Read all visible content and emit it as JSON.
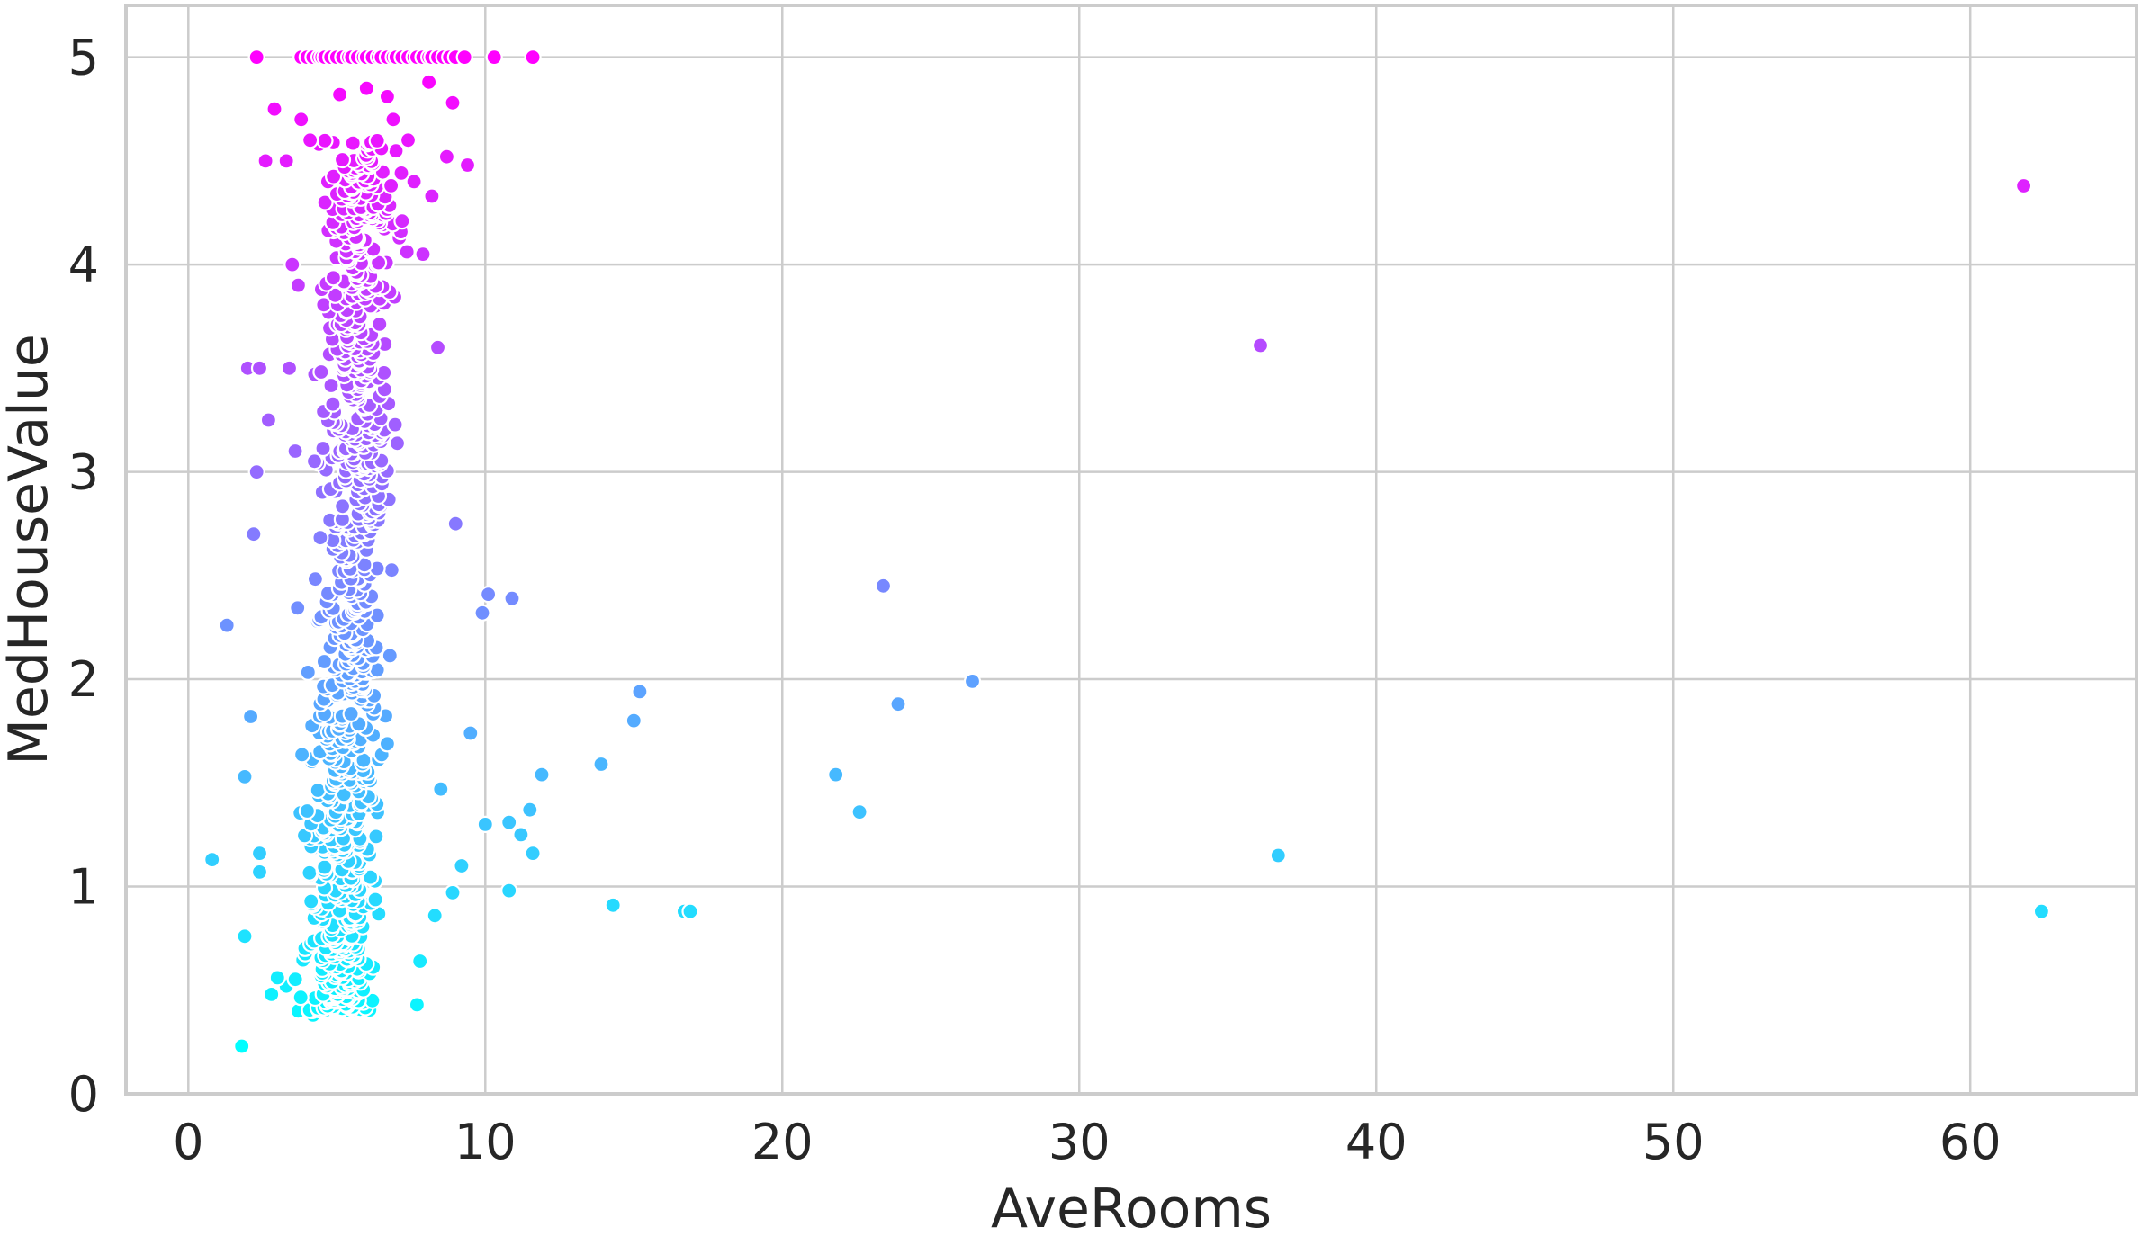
{
  "chart_data": {
    "type": "scatter",
    "xlabel": "AveRooms",
    "ylabel": "MedHouseValue",
    "xlim": [
      -2.1,
      65.6
    ],
    "ylim": [
      0,
      5.25
    ],
    "xticks": [
      0,
      10,
      20,
      30,
      40,
      50,
      60
    ],
    "yticks": [
      0,
      1,
      2,
      3,
      4,
      5
    ],
    "grid": true,
    "legend": "none",
    "colormap": {
      "name": "cool",
      "low": "#00ffff",
      "high": "#ff00ff",
      "vmin": 0.22,
      "vmax": 5.0
    },
    "points": [
      [
        0.8,
        1.13
      ],
      [
        1.3,
        2.26
      ],
      [
        1.8,
        0.23
      ],
      [
        1.9,
        0.76
      ],
      [
        1.9,
        1.53
      ],
      [
        2.0,
        3.5
      ],
      [
        2.1,
        1.82
      ],
      [
        2.2,
        2.7
      ],
      [
        2.3,
        3.0
      ],
      [
        2.3,
        5.0
      ],
      [
        2.4,
        1.07
      ],
      [
        2.4,
        1.16
      ],
      [
        2.4,
        3.5
      ],
      [
        2.6,
        4.5
      ],
      [
        2.7,
        3.25
      ],
      [
        2.8,
        0.48
      ],
      [
        2.9,
        4.75
      ],
      [
        3.0,
        0.56
      ],
      [
        3.3,
        4.5
      ],
      [
        3.3,
        0.52
      ],
      [
        3.4,
        3.5
      ],
      [
        3.5,
        4.0
      ],
      [
        3.6,
        3.1
      ],
      [
        3.7,
        0.4
      ],
      [
        3.7,
        3.9
      ],
      [
        3.8,
        4.7
      ],
      [
        4.1,
        4.6
      ],
      [
        4.2,
        0.38
      ],
      [
        4.4,
        4.58
      ],
      [
        4.6,
        4.3
      ],
      [
        4.7,
        4.4
      ],
      [
        4.8,
        0.45
      ],
      [
        5.1,
        4.82
      ],
      [
        5.3,
        4.1
      ],
      [
        5.8,
        4.32
      ],
      [
        6.0,
        4.85
      ],
      [
        6.2,
        0.45
      ],
      [
        6.3,
        3.8
      ],
      [
        6.5,
        4.56
      ],
      [
        6.7,
        4.81
      ],
      [
        6.9,
        4.7
      ],
      [
        7.2,
        4.21
      ],
      [
        7.4,
        4.6
      ],
      [
        7.6,
        4.4
      ],
      [
        7.7,
        0.43
      ],
      [
        7.8,
        0.64
      ],
      [
        7.9,
        4.05
      ],
      [
        8.1,
        4.88
      ],
      [
        8.2,
        4.33
      ],
      [
        8.3,
        0.86
      ],
      [
        8.4,
        3.6
      ],
      [
        8.5,
        1.47
      ],
      [
        8.7,
        4.52
      ],
      [
        8.9,
        4.78
      ],
      [
        8.9,
        0.97
      ],
      [
        9.0,
        2.75
      ],
      [
        9.2,
        1.1
      ],
      [
        9.4,
        4.48
      ],
      [
        9.5,
        1.74
      ],
      [
        9.9,
        2.32
      ],
      [
        10.0,
        1.3
      ],
      [
        10.1,
        2.41
      ],
      [
        10.8,
        0.98
      ],
      [
        10.8,
        1.31
      ],
      [
        10.9,
        2.39
      ],
      [
        11.2,
        1.25
      ],
      [
        11.5,
        1.37
      ],
      [
        11.6,
        1.16
      ],
      [
        11.9,
        1.54
      ],
      [
        13.9,
        1.59
      ],
      [
        14.3,
        0.91
      ],
      [
        15.0,
        1.8
      ],
      [
        15.2,
        1.94
      ],
      [
        16.7,
        0.88
      ],
      [
        16.9,
        0.88
      ],
      [
        21.8,
        1.54
      ],
      [
        22.6,
        1.36
      ],
      [
        23.4,
        2.45
      ],
      [
        23.9,
        1.88
      ],
      [
        26.4,
        1.99
      ],
      [
        36.1,
        3.61
      ],
      [
        36.7,
        1.15
      ],
      [
        61.8,
        4.38
      ],
      [
        62.4,
        0.88
      ],
      [
        2.3,
        5.0
      ],
      [
        3.8,
        5.0
      ],
      [
        4.0,
        5.0
      ],
      [
        4.2,
        5.0
      ],
      [
        4.4,
        5.0
      ],
      [
        4.5,
        5.0
      ],
      [
        4.6,
        5.0
      ],
      [
        4.8,
        5.0
      ],
      [
        5.0,
        5.0
      ],
      [
        5.2,
        5.0
      ],
      [
        5.4,
        5.0
      ],
      [
        5.5,
        5.0
      ],
      [
        5.7,
        5.0
      ],
      [
        5.9,
        5.0
      ],
      [
        6.0,
        5.0
      ],
      [
        6.2,
        5.0
      ],
      [
        6.4,
        5.0
      ],
      [
        6.5,
        5.0
      ],
      [
        6.7,
        5.0
      ],
      [
        6.9,
        5.0
      ],
      [
        7.0,
        5.0
      ],
      [
        7.2,
        5.0
      ],
      [
        7.4,
        5.0
      ],
      [
        7.6,
        5.0
      ],
      [
        7.7,
        5.0
      ],
      [
        7.9,
        5.0
      ],
      [
        8.1,
        5.0
      ],
      [
        8.2,
        5.0
      ],
      [
        8.4,
        5.0
      ],
      [
        8.6,
        5.0
      ],
      [
        8.8,
        5.0
      ],
      [
        9.0,
        5.0
      ],
      [
        9.3,
        5.0
      ],
      [
        10.3,
        5.0
      ],
      [
        11.6,
        5.0
      ]
    ],
    "point_cloud": {
      "x_center": 5.3,
      "x_spread": 1.1,
      "y_min": 0.4,
      "y_max": 4.6,
      "count": 900
    }
  }
}
